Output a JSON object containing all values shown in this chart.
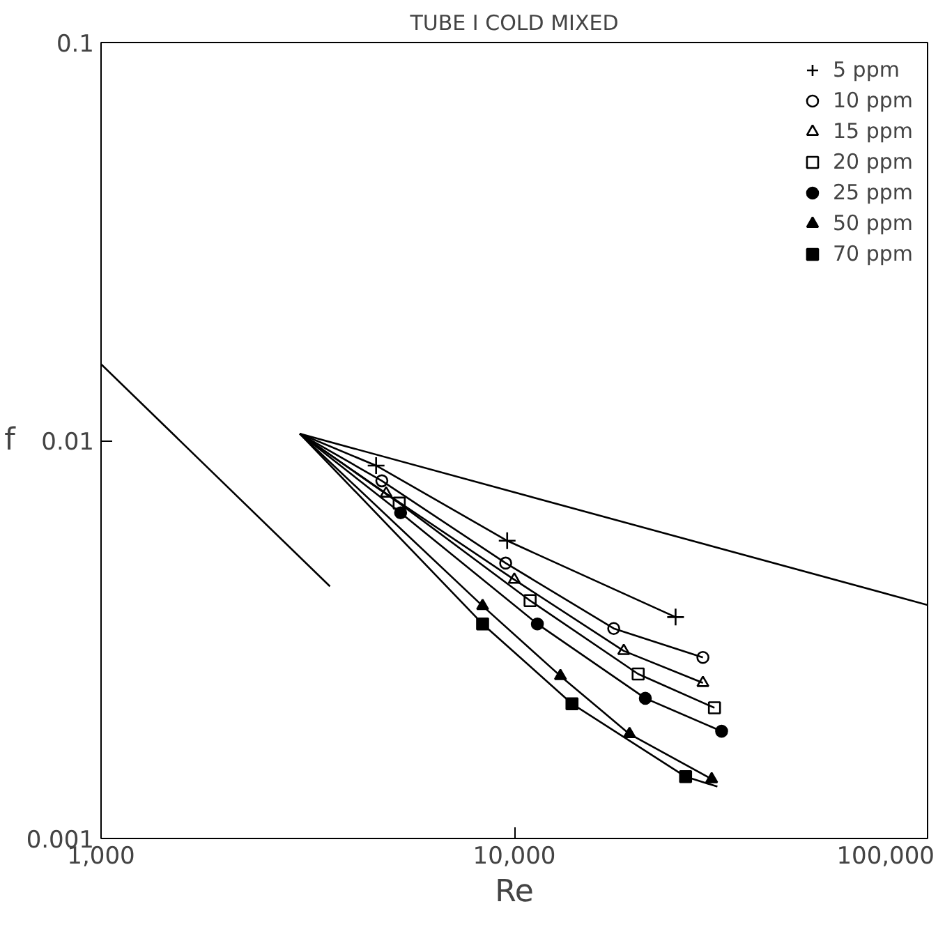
{
  "chart_data": {
    "type": "scatter",
    "title": "TUBE I COLD MIXED",
    "xlabel": "Re",
    "ylabel": "f",
    "log": "xy",
    "grid": false,
    "legend": "top right",
    "xlim": [
      1000,
      100000
    ],
    "ylim": [
      0.001,
      0.1
    ],
    "xticks": [
      {
        "value": 1000,
        "label": "1,000"
      },
      {
        "value": 10000,
        "label": "10,000"
      },
      {
        "value": 100000,
        "label": "100,000"
      }
    ],
    "yticks": [
      0.001,
      0.01,
      0.1
    ],
    "series": [
      {
        "name": "5 ppm",
        "marker": "cross",
        "color": "#000000",
        "x": [
          4630,
          9610,
          24560
        ],
        "values": [
          0.00865,
          0.0056,
          0.0036
        ]
      },
      {
        "name": "10 ppm",
        "marker": "circle",
        "color": "#000000",
        "x": [
          4780,
          9530,
          17400,
          28600
        ],
        "values": [
          0.00792,
          0.00492,
          0.00337,
          0.00285
        ]
      },
      {
        "name": "15 ppm",
        "marker": "triangle",
        "color": "#000000",
        "x": [
          4897,
          10000,
          18400,
          28600
        ],
        "values": [
          0.00736,
          0.00447,
          0.00296,
          0.00246
        ]
      },
      {
        "name": "20 ppm",
        "marker": "square",
        "color": "#000000",
        "x": [
          5266,
          10920,
          19940,
          30500
        ],
        "values": [
          0.00696,
          0.00396,
          0.00259,
          0.00213
        ]
      },
      {
        "name": "25 ppm",
        "marker": "circle",
        "color": "#000000",
        "x": [
          5307,
          11370,
          20750,
          31740
        ],
        "values": [
          0.00658,
          0.00346,
          0.00225,
          0.00186
        ]
      },
      {
        "name": "50 ppm",
        "marker": "triangle",
        "color": "#000000",
        "x": [
          8380,
          12930,
          19000,
          30030
        ],
        "values": [
          0.00384,
          0.00256,
          0.00183,
          0.00141
        ]
      },
      {
        "name": "70 ppm",
        "marker": "square",
        "color": "#000000",
        "x": [
          8380,
          13790,
          25970
        ],
        "values": [
          0.00346,
          0.00218,
          0.00143
        ]
      },
      {
        "type": "line",
        "color": "#000000",
        "x": [
          3027,
          4630,
          9610,
          24560
        ],
        "values": [
          0.0104,
          0.00865,
          0.0056,
          0.0036
        ]
      },
      {
        "type": "line",
        "color": "#000000",
        "x": [
          3027,
          4780,
          9530,
          17400,
          28600
        ],
        "values": [
          0.0104,
          0.00792,
          0.00492,
          0.00337,
          0.00285
        ]
      },
      {
        "type": "line",
        "color": "#000000",
        "x": [
          3027,
          4897,
          10000,
          18400,
          28600
        ],
        "values": [
          0.0104,
          0.00736,
          0.00447,
          0.00296,
          0.00246
        ]
      },
      {
        "type": "line",
        "color": "#000000",
        "x": [
          3027,
          5266,
          10920,
          19940,
          30500
        ],
        "values": [
          0.0104,
          0.00696,
          0.00396,
          0.00259,
          0.00213
        ]
      },
      {
        "type": "line",
        "color": "#000000",
        "x": [
          3027,
          5307,
          11370,
          20750,
          31740
        ],
        "values": [
          0.0104,
          0.00658,
          0.00346,
          0.00225,
          0.00186
        ]
      },
      {
        "type": "line",
        "color": "#000000",
        "x": [
          3027,
          8380,
          12930,
          19000,
          30030
        ],
        "values": [
          0.0104,
          0.00384,
          0.00256,
          0.00183,
          0.00141
        ]
      },
      {
        "type": "line",
        "color": "#000000",
        "x": [
          3027,
          8380,
          13790,
          25970,
          31000
        ],
        "values": [
          0.0104,
          0.00346,
          0.00218,
          0.00143,
          0.00135
        ]
      },
      {
        "type": "line",
        "color": "#000000",
        "x": [
          1000,
          3580
        ],
        "values": [
          0.01556,
          0.0043
        ]
      },
      {
        "type": "line",
        "color": "#000000",
        "x": [
          3027,
          100000
        ],
        "values": [
          0.0104,
          0.00386
        ]
      }
    ]
  }
}
